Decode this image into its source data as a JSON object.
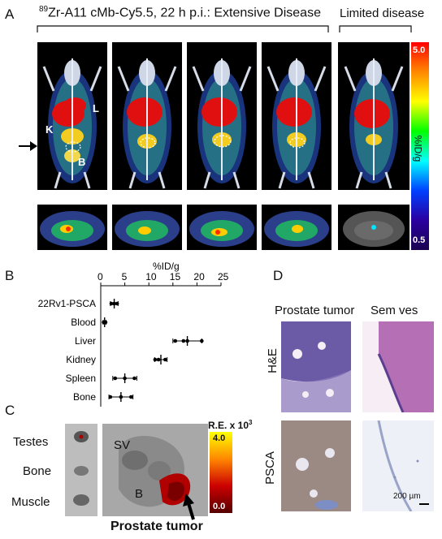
{
  "panels": {
    "A": {
      "letter": "A",
      "title_prefix_sup": "89",
      "title_main": "Zr-A11 cMb-Cy5.5, 22 h p.i.: Extensive Disease",
      "limited_title": "Limited disease",
      "organ_labels": {
        "liver": "L",
        "kidney": "K",
        "bone": "B"
      },
      "colorbar": {
        "max": "5.0",
        "min": "0.5",
        "unit": "%ID/g"
      }
    },
    "B": {
      "letter": "B",
      "axis_title": "%ID/g",
      "ticks": [
        "0",
        "5",
        "10",
        "15",
        "20",
        "25"
      ],
      "rows": [
        {
          "label": "22Rv1-PSCA",
          "mean": 2.8,
          "sd": 0.8,
          "points": [
            2.2,
            2.8,
            3.4
          ]
        },
        {
          "label": "Blood",
          "mean": 0.8,
          "sd": 0.3,
          "points": [
            0.6,
            0.8,
            1.0
          ]
        },
        {
          "label": "Liver",
          "mean": 18.0,
          "sd": 3.0,
          "points": [
            15.5,
            17.2,
            18.0,
            21.0
          ]
        },
        {
          "label": "Kidney",
          "mean": 12.5,
          "sd": 1.3,
          "points": [
            11.3,
            12.0,
            13.4
          ]
        },
        {
          "label": "Spleen",
          "mean": 5.0,
          "sd": 2.5,
          "points": [
            3.0,
            5.0,
            7.0
          ]
        },
        {
          "label": "Bone",
          "mean": 4.2,
          "sd": 2.5,
          "points": [
            2.0,
            4.2,
            6.3
          ]
        }
      ]
    },
    "C": {
      "letter": "C",
      "tissues": [
        "Testes",
        "Bone",
        "Muscle"
      ],
      "sv_label": "SV",
      "b_label": "B",
      "tumor_label": "Prostate tumor",
      "colorbar": {
        "title": "R.E. x 10",
        "title_sup": "3",
        "max": "4.0",
        "min": "0.0"
      }
    },
    "D": {
      "letter": "D",
      "col_titles": [
        "Prostate tumor",
        "Sem ves"
      ],
      "row_titles": [
        "H&E",
        "PSCA"
      ],
      "scale_bar": "200 µm"
    }
  },
  "colors": {
    "rainbow": [
      "#ff0000",
      "#ff9900",
      "#ffff00",
      "#00ff00",
      "#00ffff",
      "#0000ff",
      "#5a00a0"
    ],
    "heat": [
      "#ffff00",
      "#ff8800",
      "#cc0000",
      "#550000"
    ]
  }
}
